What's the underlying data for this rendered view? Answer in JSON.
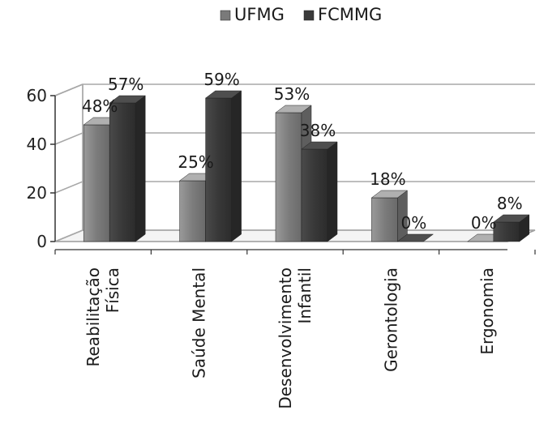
{
  "chart_data": {
    "type": "bar",
    "style": "3d-clustered-column",
    "categories": [
      [
        "Reabilitação",
        "Física"
      ],
      [
        "Saúde Mental"
      ],
      [
        "Desenvolvimento",
        "Infantil"
      ],
      [
        "Gerontologia"
      ],
      [
        "Ergonomia"
      ]
    ],
    "series": [
      {
        "name": "UFMG",
        "values": [
          48,
          25,
          53,
          18,
          0
        ],
        "labels": [
          "48%",
          "25%",
          "53%",
          "18%",
          "0%"
        ],
        "color": "#7a7a7a"
      },
      {
        "name": "FCMMG",
        "values": [
          57,
          59,
          38,
          0,
          8
        ],
        "labels": [
          "57%",
          "59%",
          "38%",
          "0%",
          "8%"
        ],
        "color": "#3a3a3a"
      }
    ],
    "ylim": [
      0,
      60
    ],
    "yticks": [
      0,
      20,
      40,
      60
    ],
    "grid": true,
    "legend": "top-center"
  }
}
